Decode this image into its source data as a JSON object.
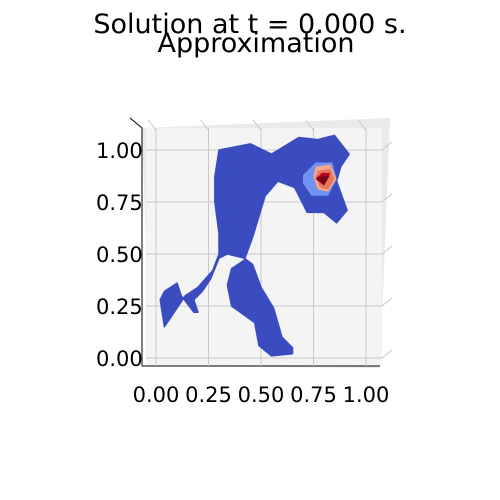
{
  "chart_data": {
    "type": "heatmap",
    "title": "Solution at t = 0.000 s.",
    "subtitle": "Approximation",
    "xlabel": "",
    "ylabel": "",
    "xlim": [
      0.0,
      1.0
    ],
    "ylim": [
      0.0,
      1.0
    ],
    "grid": true,
    "x_ticks": [
      "0.00",
      "0.25",
      "0.50",
      "0.75",
      "1.00"
    ],
    "y_ticks": [
      "0.00",
      "0.25",
      "0.50",
      "0.75",
      "1.00"
    ],
    "colormap": "coolwarm",
    "colors": {
      "background": "#3b4cc0",
      "low_mid": "#6f92f3",
      "pale": "#f7a889",
      "mid_high": "#e8765c",
      "high": "#b40426",
      "pane": "#f4f4f4",
      "grid": "#c8c8c8"
    },
    "domain_outline": [
      [
        0.3,
        1.0
      ],
      [
        0.45,
        1.03
      ],
      [
        0.55,
        0.98
      ],
      [
        0.68,
        1.06
      ],
      [
        0.77,
        1.05
      ],
      [
        0.85,
        1.07
      ],
      [
        0.92,
        0.98
      ],
      [
        0.88,
        0.92
      ],
      [
        0.86,
        0.85
      ],
      [
        0.91,
        0.71
      ],
      [
        0.86,
        0.65
      ],
      [
        0.8,
        0.7
      ],
      [
        0.72,
        0.7
      ],
      [
        0.66,
        0.82
      ],
      [
        0.58,
        0.85
      ],
      [
        0.52,
        0.78
      ],
      [
        0.46,
        0.58
      ],
      [
        0.42,
        0.47
      ],
      [
        0.36,
        0.43
      ],
      [
        0.34,
        0.35
      ],
      [
        0.36,
        0.25
      ],
      [
        0.47,
        0.17
      ],
      [
        0.49,
        0.06
      ],
      [
        0.55,
        0.01
      ],
      [
        0.65,
        0.02
      ],
      [
        0.65,
        0.05
      ],
      [
        0.6,
        0.1
      ],
      [
        0.56,
        0.24
      ],
      [
        0.5,
        0.34
      ],
      [
        0.46,
        0.45
      ],
      [
        0.42,
        0.48
      ],
      [
        0.34,
        0.5
      ],
      [
        0.3,
        0.48
      ],
      [
        0.26,
        0.38
      ],
      [
        0.22,
        0.32
      ],
      [
        0.18,
        0.28
      ],
      [
        0.2,
        0.22
      ],
      [
        0.18,
        0.22
      ],
      [
        0.12,
        0.3
      ],
      [
        0.1,
        0.36
      ],
      [
        0.04,
        0.32
      ],
      [
        0.02,
        0.28
      ],
      [
        0.04,
        0.15
      ],
      [
        0.1,
        0.24
      ],
      [
        0.14,
        0.3
      ],
      [
        0.2,
        0.34
      ],
      [
        0.27,
        0.42
      ],
      [
        0.3,
        0.5
      ],
      [
        0.3,
        0.6
      ],
      [
        0.28,
        0.75
      ],
      [
        0.28,
        0.87
      ]
    ],
    "peak": {
      "x": 0.79,
      "y": 0.82,
      "levels": [
        {
          "level": "low_mid",
          "polygon": [
            [
              0.7,
              0.88
            ],
            [
              0.76,
              0.94
            ],
            [
              0.84,
              0.94
            ],
            [
              0.86,
              0.86
            ],
            [
              0.82,
              0.78
            ],
            [
              0.74,
              0.78
            ],
            [
              0.7,
              0.84
            ]
          ]
        },
        {
          "level": "pale",
          "polygon": [
            [
              0.76,
              0.92
            ],
            [
              0.83,
              0.93
            ],
            [
              0.86,
              0.86
            ],
            [
              0.82,
              0.8
            ],
            [
              0.77,
              0.81
            ],
            [
              0.75,
              0.87
            ]
          ]
        },
        {
          "level": "mid_high",
          "polygon": [
            [
              0.77,
              0.9
            ],
            [
              0.83,
              0.91
            ],
            [
              0.85,
              0.86
            ],
            [
              0.82,
              0.81
            ],
            [
              0.78,
              0.82
            ],
            [
              0.76,
              0.87
            ]
          ]
        },
        {
          "level": "high",
          "polygon": [
            [
              0.79,
              0.89
            ],
            [
              0.83,
              0.89
            ],
            [
              0.8,
              0.83
            ],
            [
              0.76,
              0.86
            ]
          ]
        }
      ]
    }
  }
}
